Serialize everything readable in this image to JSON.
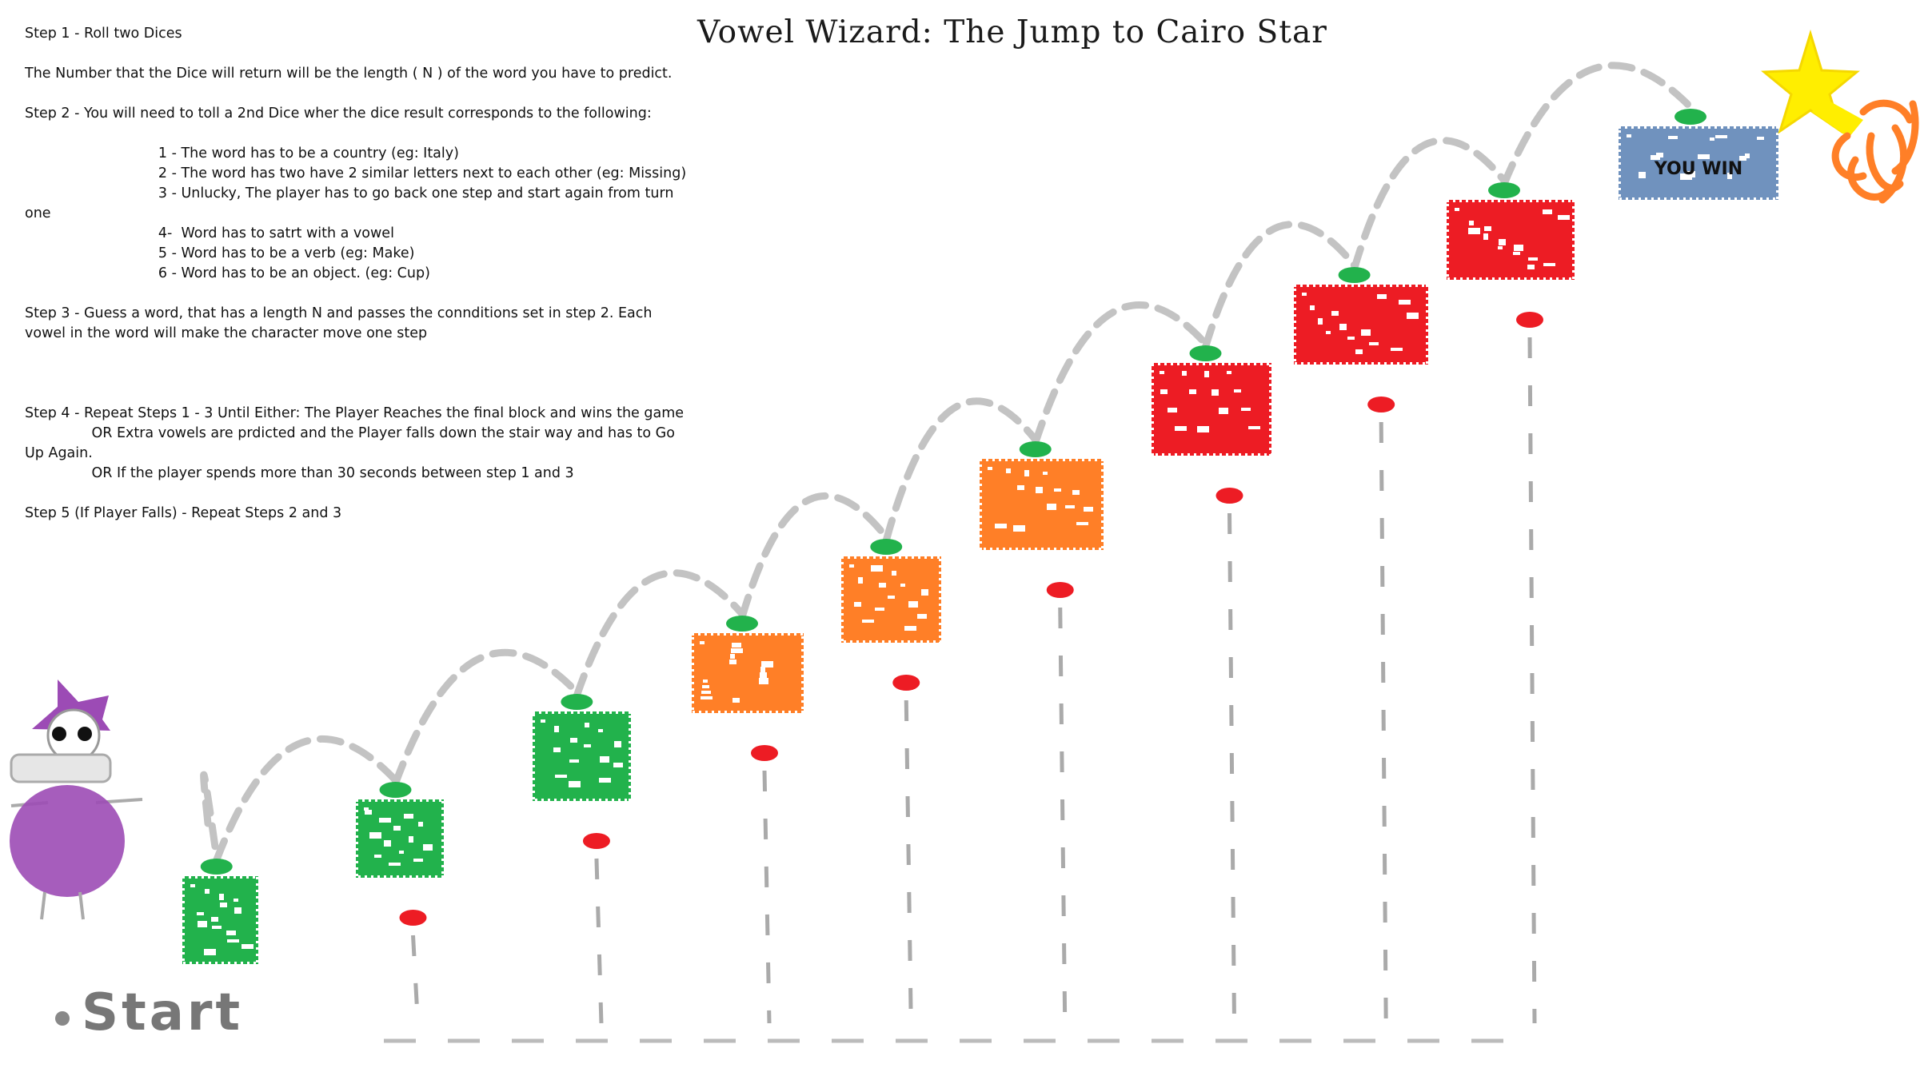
{
  "title": "Vowel Wizard: The Jump to Cairo Star",
  "rules": [
    "Step 1 - Roll two Dices",
    "The Number that the Dice will return will be the length ( N ) of the word you have to predict.",
    "Step 2 - You will need to toll a 2nd Dice wher the dice result corresponds to the following:",
    "                              1 - The word has to be a country (eg: Italy)\n                              2 - The word has two have 2 similar letters next to each other (eg: Missing)\n                              3 - Unlucky, The player has to go back one step and start again from turn one\n                              4-  Word has to satrt with a vowel\n                              5 - Word has to be a verb (eg: Make)\n                              6 - Word has to be an object. (eg: Cup)",
    "Step 3 - Guess a word, that has a length N and passes the connditions set in step 2. Each vowel in the word will make the character move one step",
    "",
    "Step 4 - Repeat Steps 1 - 3 Until Either: The Player Reaches the final block and wins the game\n               OR Extra vowels are prdicted and the Player falls down the stair way and has to Go Up Again.\n               OR If the player spends more than 30 seconds between step 1 and 3",
    "Step 5 (If Player Falls) - Repeat Steps 2 and 3"
  ],
  "start_label": "Start",
  "win_label": "YOU WIN",
  "colors": {
    "green": "#22b24c",
    "orange": "#ff7f27",
    "red": "#ed1c24",
    "blue": "#7092be",
    "purple": "#9c4bb5",
    "yellow": "#ffee00",
    "gray": "#c3c3c3"
  },
  "steps": [
    {
      "index": 1,
      "color": "green"
    },
    {
      "index": 2,
      "color": "green"
    },
    {
      "index": 3,
      "color": "green"
    },
    {
      "index": 4,
      "color": "orange"
    },
    {
      "index": 5,
      "color": "orange"
    },
    {
      "index": 6,
      "color": "orange"
    },
    {
      "index": 7,
      "color": "red"
    },
    {
      "index": 8,
      "color": "red"
    },
    {
      "index": 9,
      "color": "red"
    },
    {
      "index": 10,
      "color": "blue"
    }
  ]
}
